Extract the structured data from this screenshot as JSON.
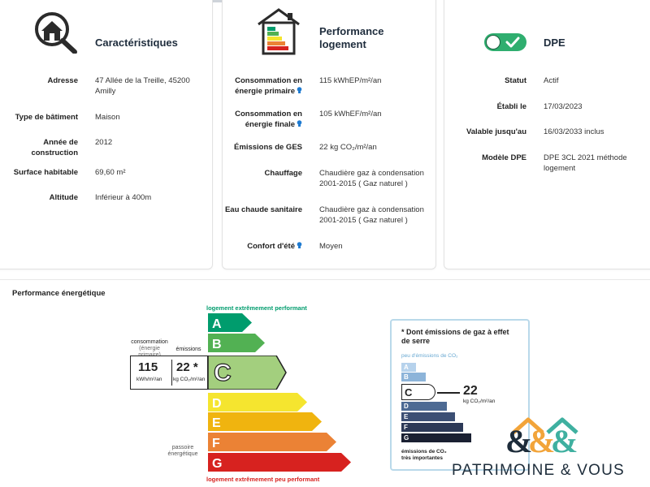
{
  "characteristics": {
    "title": "Caractéristiques",
    "rows": [
      {
        "label": "Adresse",
        "value": "47 Allée de la Treille, 45200 Amilly"
      },
      {
        "label": "Type de bâtiment",
        "value": "Maison"
      },
      {
        "label": "Année de construction",
        "value": "2012"
      },
      {
        "label": "Surface habitable",
        "value": "69,60 m²"
      },
      {
        "label": "Altitude",
        "value": "Inférieur à 400m"
      }
    ]
  },
  "performance": {
    "title": "Performance logement",
    "rows": [
      {
        "label": "Consommation en énergie primaire",
        "value": "115 kWhEP/m²/an"
      },
      {
        "label": "Consommation en énergie finale",
        "value": "105 kWhEF/m²/an"
      },
      {
        "label": "Émissions de GES",
        "value": "22 kg CO₂/m²/an"
      },
      {
        "label": "Chauffage",
        "value": "Chaudière gaz à condensation 2001-2015 ( Gaz naturel )"
      },
      {
        "label": "Eau chaude sanitaire",
        "value": "Chaudière gaz à condensation 2001-2015 ( Gaz naturel )"
      },
      {
        "label": "Confort d'été",
        "value": "Moyen"
      }
    ]
  },
  "dpe": {
    "title": "DPE",
    "rows": [
      {
        "label": "Statut",
        "value": "Actif"
      },
      {
        "label": "Établi le",
        "value": "17/03/2023"
      },
      {
        "label": "Valable jusqu'au",
        "value": "16/03/2033 inclus"
      },
      {
        "label": "Modèle DPE",
        "value": "DPE 3CL 2021 méthode logement"
      }
    ]
  },
  "energy_section": {
    "title": "Performance énergétique",
    "top_caption": "logement extrêmement performant",
    "bottom_caption": "logement extrêmement peu performant",
    "consommation_label": "consommation",
    "consommation_sub": "(énergie primaire)",
    "emissions_label": "émissions",
    "consumption_value": "115",
    "consumption_unit": "kWh/m²/an",
    "emissions_value": "22 *",
    "emissions_unit": "kg CO₂/m²/an",
    "passoire_label": "passoire énergétique",
    "classes": [
      "A",
      "B",
      "C",
      "D",
      "E",
      "F",
      "G"
    ],
    "current_class": "C",
    "colors": [
      "#009c6d",
      "#52b153",
      "#a3cf7e",
      "#f5e52f",
      "#f0b40f",
      "#eb8235",
      "#d7221f"
    ]
  },
  "ges_panel": {
    "title": "* Dont émissions de gaz à effet de serre",
    "subtitle": "peu d'émissions de CO₂",
    "classes": [
      "A",
      "B",
      "C",
      "D",
      "E",
      "F",
      "G"
    ],
    "current_class": "C",
    "value": "22",
    "unit": "kg CO₂/m²/an",
    "footer": "émissions de CO₂ très importantes",
    "colors": [
      "#b6d2ec",
      "#8db4d9",
      "#6a8cb5",
      "#4d6a93",
      "#3c4f74",
      "#2c3957",
      "#1a2032"
    ]
  },
  "branding": {
    "name": "PATRIMOINE & VOUS",
    "colors": [
      "#f2a43a",
      "#3fb0a0",
      "#1d2c3a"
    ]
  }
}
